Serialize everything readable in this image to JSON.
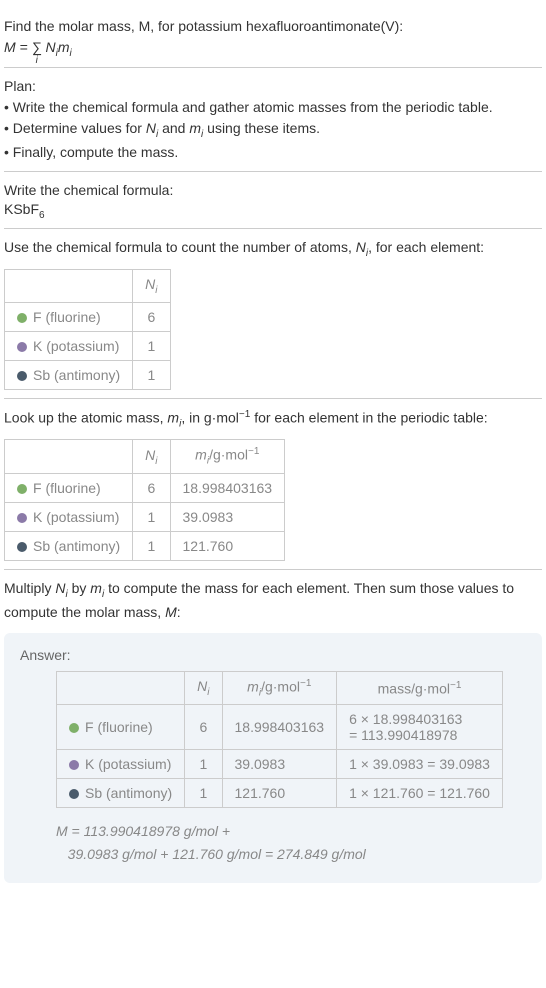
{
  "intro": {
    "line1": "Find the molar mass, M, for potassium hexafluoroantimonate(V):",
    "formula_prefix": "M = ",
    "formula_sum": "∑",
    "formula_sub": "i",
    "formula_body": " N",
    "formula_body_sub": "i",
    "formula_body2": "m",
    "formula_body2_sub": "i"
  },
  "plan": {
    "title": "Plan:",
    "b1": "• Write the chemical formula and gather atomic masses from the periodic table.",
    "b2_a": "• Determine values for ",
    "b2_n": "N",
    "b2_ni": "i",
    "b2_mid": " and ",
    "b2_m": "m",
    "b2_mi": "i",
    "b2_end": " using these items.",
    "b3": "• Finally, compute the mass."
  },
  "formula_section": {
    "title": "Write the chemical formula:",
    "compound": "KSbF",
    "compound_sub": "6"
  },
  "count_section": {
    "title_a": "Use the chemical formula to count the number of atoms, ",
    "title_n": "N",
    "title_ni": "i",
    "title_b": ", for each element:",
    "header_n": "N",
    "header_ni": "i",
    "rows": [
      {
        "label": "F (fluorine)",
        "color": "green",
        "n": "6"
      },
      {
        "label": "K (potassium)",
        "color": "purple",
        "n": "1"
      },
      {
        "label": "Sb (antimony)",
        "color": "dark",
        "n": "1"
      }
    ]
  },
  "mass_section": {
    "title_a": "Look up the atomic mass, ",
    "title_m": "m",
    "title_mi": "i",
    "title_b": ", in g·mol",
    "title_exp": "−1",
    "title_c": " for each element in the periodic table:",
    "header_n": "N",
    "header_ni": "i",
    "header_m": "m",
    "header_mi": "i",
    "header_unit": "/g·mol",
    "header_exp": "−1",
    "rows": [
      {
        "label": "F (fluorine)",
        "color": "green",
        "n": "6",
        "m": "18.998403163"
      },
      {
        "label": "K (potassium)",
        "color": "purple",
        "n": "1",
        "m": "39.0983"
      },
      {
        "label": "Sb (antimony)",
        "color": "dark",
        "n": "1",
        "m": "121.760"
      }
    ]
  },
  "multiply_section": {
    "text_a": "Multiply ",
    "text_n": "N",
    "text_ni": "i",
    "text_mid": " by ",
    "text_m": "m",
    "text_mi": "i",
    "text_b": " to compute the mass for each element. Then sum those values to compute the molar mass, ",
    "text_M": "M",
    "text_c": ":"
  },
  "answer": {
    "title": "Answer:",
    "header_n": "N",
    "header_ni": "i",
    "header_m": "m",
    "header_mi": "i",
    "header_munit": "/g·mol",
    "header_mexp": "−1",
    "header_mass": "mass/g·mol",
    "header_massexp": "−1",
    "rows": [
      {
        "label": "F (fluorine)",
        "color": "green",
        "n": "6",
        "m": "18.998403163",
        "mass_l1": "6 × 18.998403163",
        "mass_l2": "= 113.990418978"
      },
      {
        "label": "K (potassium)",
        "color": "purple",
        "n": "1",
        "m": "39.0983",
        "mass": "1 × 39.0983 = 39.0983"
      },
      {
        "label": "Sb (antimony)",
        "color": "dark",
        "n": "1",
        "m": "121.760",
        "mass": "1 × 121.760 = 121.760"
      }
    ],
    "formula_l1": "M = 113.990418978 g/mol +",
    "formula_l2": "39.0983 g/mol + 121.760 g/mol = 274.849 g/mol"
  }
}
